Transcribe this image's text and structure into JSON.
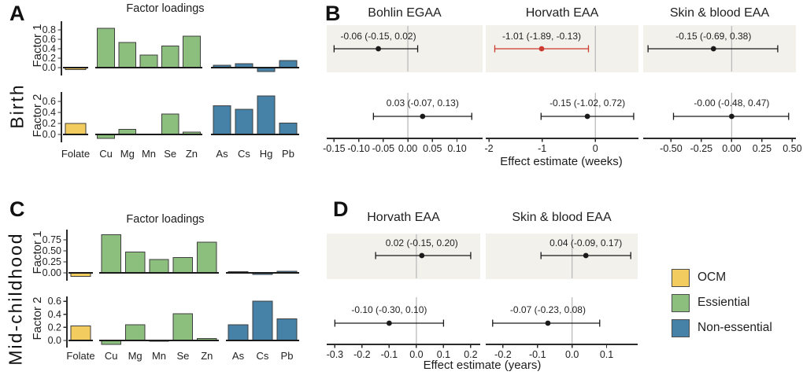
{
  "figure": {
    "panels": {
      "A": {
        "letter": "A",
        "title": "Factor loadings",
        "side_label": "Birth"
      },
      "B": {
        "letter": "B"
      },
      "C": {
        "letter": "C",
        "title": "Factor loadings",
        "side_label": "Mid-childhood"
      },
      "D": {
        "letter": "D"
      }
    },
    "legend": {
      "items": [
        {
          "label": "OCM",
          "color": "#F2CC5F"
        },
        {
          "label": "Essiential",
          "color": "#8CBE7E"
        },
        {
          "label": "Non-essential",
          "color": "#4681A8"
        }
      ]
    }
  },
  "colors": {
    "ocm": "#F2CC5F",
    "essential": "#8CBE7E",
    "non_essential": "#4681A8",
    "significant": "#CC3B2E",
    "normal_point": "#1a1a1a",
    "strip_bg": "#F2F1EC",
    "zero_line": "#BBBBBB",
    "axis": "#2B2B2B",
    "bar_stroke": "#3F3F3F",
    "text": "#1F1F1F"
  },
  "chart_data": [
    {
      "id": "birth-factor1",
      "type": "bar",
      "row_label": "Factor 1",
      "categories": [
        "Folate",
        "Cu",
        "Mg",
        "Mn",
        "Se",
        "Zn",
        "As",
        "Cs",
        "Hg",
        "Pb"
      ],
      "groups": [
        "OCM",
        "Essential",
        "Essential",
        "Essential",
        "Essential",
        "Essential",
        "Non-essential",
        "Non-essential",
        "Non-essential",
        "Non-essential"
      ],
      "values": [
        -0.04,
        0.83,
        0.53,
        0.27,
        0.46,
        0.67,
        0.05,
        0.08,
        -0.08,
        0.15
      ],
      "ytick_values": [
        0,
        0.2,
        0.4,
        0.6,
        0.8
      ],
      "ytick_labels": [
        "0.0",
        "0.2",
        "0.4",
        "0.6",
        "0.8"
      ],
      "ylim": [
        -0.15,
        0.93
      ]
    },
    {
      "id": "birth-factor2",
      "type": "bar",
      "row_label": "Factor 2",
      "categories": [
        "Folate",
        "Cu",
        "Mg",
        "Mn",
        "Se",
        "Zn",
        "As",
        "Cs",
        "Hg",
        "Pb"
      ],
      "groups": [
        "OCM",
        "Essential",
        "Essential",
        "Essential",
        "Essential",
        "Essential",
        "Non-essential",
        "Non-essential",
        "Non-essential",
        "Non-essential"
      ],
      "values": [
        0.2,
        -0.07,
        0.09,
        0.0,
        0.37,
        0.04,
        0.52,
        0.46,
        0.7,
        0.21
      ],
      "ytick_values": [
        0,
        0.2,
        0.4,
        0.6
      ],
      "ytick_labels": [
        "0.0",
        "0.2",
        "0.4",
        "0.6"
      ],
      "ylim": [
        -0.13,
        0.73
      ]
    },
    {
      "id": "midchildhood-factor1",
      "type": "bar",
      "row_label": "Factor 1",
      "categories": [
        "Folate",
        "Cu",
        "Mg",
        "Mn",
        "Se",
        "Zn",
        "As",
        "Cs",
        "Pb"
      ],
      "groups": [
        "OCM",
        "Essential",
        "Essential",
        "Essential",
        "Essential",
        "Essential",
        "Non-essential",
        "Non-essential",
        "Non-essential"
      ],
      "values": [
        -0.08,
        0.87,
        0.47,
        0.3,
        0.35,
        0.7,
        0.03,
        -0.04,
        0.04
      ],
      "ytick_values": [
        0,
        0.25,
        0.5,
        0.75
      ],
      "ytick_labels": [
        "0.00",
        "0.25",
        "0.50",
        "0.75"
      ],
      "ylim": [
        -0.16,
        0.93
      ]
    },
    {
      "id": "midchildhood-factor2",
      "type": "bar",
      "row_label": "Factor 2",
      "categories": [
        "Folate",
        "Cu",
        "Mg",
        "Mn",
        "Se",
        "Zn",
        "As",
        "Cs",
        "Pb"
      ],
      "groups": [
        "OCM",
        "Essential",
        "Essential",
        "Essential",
        "Essential",
        "Essential",
        "Non-essential",
        "Non-essential",
        "Non-essential"
      ],
      "values": [
        0.22,
        -0.06,
        0.24,
        -0.01,
        0.41,
        0.03,
        0.24,
        0.6,
        0.33
      ],
      "ytick_values": [
        0,
        0.2,
        0.4,
        0.6
      ],
      "ytick_labels": [
        "0.0",
        "0.2",
        "0.4",
        "0.6"
      ],
      "ylim": [
        -0.1,
        0.64
      ]
    },
    {
      "id": "birth-forest",
      "type": "forest",
      "xlabel": "Effect estimate (weeks)",
      "subplots": [
        {
          "title": "Bohlin EGAA",
          "xlim": [
            -0.165,
            0.152
          ],
          "xticks": [
            {
              "v": -0.15,
              "label": "-0.15"
            },
            {
              "v": -0.1,
              "label": "-0.10"
            },
            {
              "v": -0.05,
              "label": "-0.05"
            },
            {
              "v": 0,
              "label": "0.00"
            },
            {
              "v": 0.05,
              "label": "0.05"
            },
            {
              "v": 0.1,
              "label": "0.10"
            }
          ],
          "rows": [
            {
              "text": "-0.06 (-0.15, 0.02)",
              "estimate": -0.06,
              "ci_low": -0.15,
              "ci_high": 0.02,
              "significant": false
            },
            {
              "text": "0.03 (-0.07, 0.13)",
              "estimate": 0.03,
              "ci_low": -0.07,
              "ci_high": 0.13,
              "significant": false
            }
          ]
        },
        {
          "title": "Horvath EAA",
          "xlim": [
            -2.06,
            0.81
          ],
          "xticks": [
            {
              "v": -2,
              "label": "-2"
            },
            {
              "v": -1,
              "label": "-1"
            },
            {
              "v": 0,
              "label": "0"
            }
          ],
          "rows": [
            {
              "text": "-1.01 (-1.89, -0.13)",
              "estimate": -1.01,
              "ci_low": -1.89,
              "ci_high": -0.13,
              "significant": true
            },
            {
              "text": "-0.15 (-1.02, 0.72)",
              "estimate": -0.15,
              "ci_low": -1.02,
              "ci_high": 0.72,
              "significant": false
            }
          ]
        },
        {
          "title": "Skin & blood EAA",
          "xlim": [
            -0.73,
            0.53
          ],
          "xticks": [
            {
              "v": -0.5,
              "label": "-0.50"
            },
            {
              "v": -0.25,
              "label": "-0.25"
            },
            {
              "v": 0,
              "label": "0.00"
            },
            {
              "v": 0.25,
              "label": "0.25"
            },
            {
              "v": 0.5,
              "label": "0.50"
            }
          ],
          "rows": [
            {
              "text": "-0.15 (-0.69, 0.38)",
              "estimate": -0.15,
              "ci_low": -0.69,
              "ci_high": 0.38,
              "significant": false
            },
            {
              "text": "-0.00 (-0.48, 0.47)",
              "estimate": 0,
              "ci_low": -0.48,
              "ci_high": 0.47,
              "significant": false
            }
          ]
        }
      ]
    },
    {
      "id": "midchildhood-forest",
      "type": "forest",
      "xlabel": "Effect estimate (years)",
      "subplots": [
        {
          "title": "Horvath EAA",
          "xlim": [
            -0.33,
            0.235
          ],
          "xticks": [
            {
              "v": -0.3,
              "label": "-0.3"
            },
            {
              "v": -0.2,
              "label": "-0.2"
            },
            {
              "v": -0.1,
              "label": "-0.1"
            },
            {
              "v": 0,
              "label": "0.0"
            },
            {
              "v": 0.1,
              "label": "0.1"
            },
            {
              "v": 0.2,
              "label": "0.2"
            }
          ],
          "rows": [
            {
              "text": "0.02 (-0.15, 0.20)",
              "estimate": 0.02,
              "ci_low": -0.15,
              "ci_high": 0.2,
              "significant": false
            },
            {
              "text": "-0.10 (-0.30, 0.10)",
              "estimate": -0.1,
              "ci_low": -0.3,
              "ci_high": 0.1,
              "significant": false
            }
          ]
        },
        {
          "title": "Skin & blood EAA",
          "xlim": [
            -0.25,
            0.19
          ],
          "xticks": [
            {
              "v": -0.2,
              "label": "-0.2"
            },
            {
              "v": -0.1,
              "label": "-0.1"
            },
            {
              "v": 0,
              "label": "0.0"
            },
            {
              "v": 0.1,
              "label": "0.1"
            }
          ],
          "rows": [
            {
              "text": "0.04 (-0.09, 0.17)",
              "estimate": 0.04,
              "ci_low": -0.09,
              "ci_high": 0.17,
              "significant": false
            },
            {
              "text": "-0.07 (-0.23, 0.08)",
              "estimate": -0.07,
              "ci_low": -0.23,
              "ci_high": 0.08,
              "significant": false
            }
          ]
        }
      ]
    }
  ]
}
